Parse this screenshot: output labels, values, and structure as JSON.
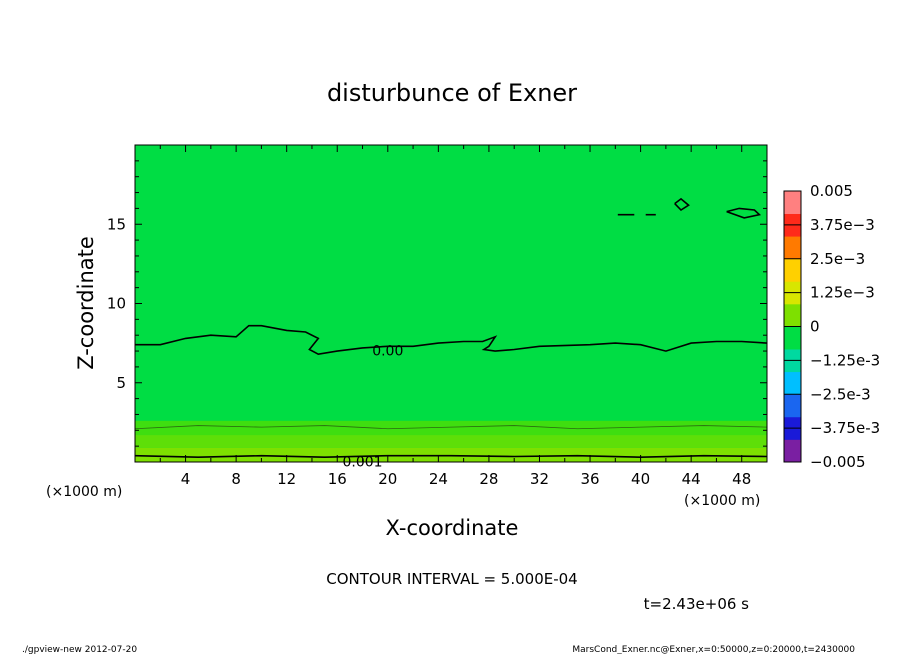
{
  "chart_data": {
    "type": "contour",
    "title": "disturbunce of Exner",
    "xlabel": "X-coordinate",
    "ylabel": "Z-coordinate",
    "x_unit_left": "(×1000 m)",
    "x_unit_right": "(×1000 m)",
    "xlim": [
      0,
      50
    ],
    "ylim": [
      0,
      20
    ],
    "x_ticks": [
      4,
      8,
      12,
      16,
      20,
      24,
      28,
      32,
      36,
      40,
      44,
      48
    ],
    "y_ticks": [
      5,
      10,
      15
    ],
    "colorbar": {
      "levels": [
        -0.005,
        -0.00375,
        -0.0025,
        -0.00125,
        0,
        0.00125,
        0.0025,
        0.00375,
        0.005
      ],
      "labels": [
        "-0.005",
        "-3.75e-3",
        "-2.5e-3",
        "-1.25e-3",
        "0",
        "1.25e-3",
        "2.5e-3",
        "3.75e-3",
        "0.005"
      ],
      "colors": [
        "#7a1fa2",
        "#1a1ad8",
        "#1a66f0",
        "#00bfff",
        "#00d9a0",
        "#00dd44",
        "#7ee000",
        "#d8e600",
        "#ffd000",
        "#ff7a00",
        "#ff2a1a",
        "#ff8080"
      ]
    },
    "contours": [
      {
        "label": "0.00",
        "label_x": 20,
        "label_z": 7.1,
        "points": [
          [
            0,
            7.4
          ],
          [
            2,
            7.4
          ],
          [
            4,
            7.8
          ],
          [
            6,
            8.0
          ],
          [
            8,
            7.9
          ],
          [
            9,
            8.6
          ],
          [
            10,
            8.6
          ],
          [
            12,
            8.3
          ],
          [
            13.5,
            8.2
          ],
          [
            14.5,
            7.8
          ],
          [
            13.8,
            7.1
          ],
          [
            14.5,
            6.8
          ],
          [
            16,
            7.0
          ],
          [
            18,
            7.2
          ],
          [
            20,
            7.3
          ],
          [
            22,
            7.3
          ],
          [
            24,
            7.5
          ],
          [
            26,
            7.6
          ],
          [
            27.5,
            7.6
          ],
          [
            28.5,
            7.9
          ],
          [
            28,
            7.3
          ],
          [
            27.6,
            7.1
          ],
          [
            28.5,
            7.0
          ],
          [
            30,
            7.1
          ],
          [
            32,
            7.3
          ],
          [
            36,
            7.4
          ],
          [
            38,
            7.5
          ],
          [
            40,
            7.4
          ],
          [
            42,
            7.0
          ],
          [
            44,
            7.5
          ],
          [
            46,
            7.6
          ],
          [
            48,
            7.6
          ],
          [
            50,
            7.5
          ]
        ]
      },
      {
        "label": "0.001",
        "label_x": 18,
        "label_z": 0.1,
        "points": [
          [
            0,
            0.4
          ],
          [
            5,
            0.3
          ],
          [
            10,
            0.4
          ],
          [
            15,
            0.3
          ],
          [
            20,
            0.4
          ],
          [
            25,
            0.4
          ],
          [
            30,
            0.35
          ],
          [
            35,
            0.4
          ],
          [
            40,
            0.3
          ],
          [
            45,
            0.4
          ],
          [
            50,
            0.35
          ]
        ]
      },
      {
        "label": "",
        "points": [
          [
            38.2,
            15.6
          ],
          [
            39.5,
            15.6
          ]
        ]
      },
      {
        "label": "",
        "points": [
          [
            40.4,
            15.6
          ],
          [
            41.2,
            15.6
          ]
        ]
      },
      {
        "label": "",
        "points": [
          [
            42.7,
            16.3
          ],
          [
            43.2,
            16.6
          ],
          [
            43.8,
            16.2
          ],
          [
            43.2,
            15.9
          ],
          [
            42.7,
            16.3
          ]
        ]
      },
      {
        "label": "",
        "points": [
          [
            46.8,
            15.8
          ],
          [
            47.8,
            16.0
          ],
          [
            49.0,
            15.9
          ],
          [
            49.4,
            15.6
          ],
          [
            48.2,
            15.4
          ],
          [
            46.8,
            15.8
          ]
        ]
      }
    ],
    "contour_interval_text": "CONTOUR INTERVAL = 5.000E-04",
    "time_text": "t=2.43e+06 s"
  },
  "footer": {
    "left": "./gpview-new  2012-07-20",
    "right": "MarsCond_Exner.nc@Exner,x=0:50000,z=0:20000,t=2430000"
  }
}
